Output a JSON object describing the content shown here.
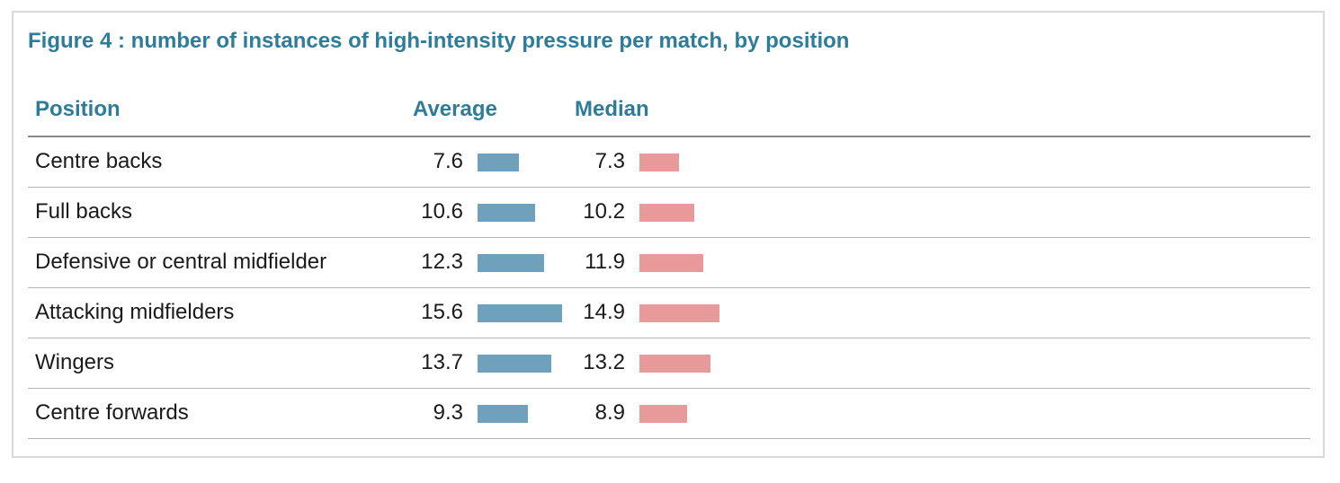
{
  "title": "Figure 4 : number of instances of high-intensity pressure per match, by position",
  "columns": {
    "position": "Position",
    "average": "Average",
    "median": "Median"
  },
  "colors": {
    "title": "#2f7c99",
    "average_bar": "#6fa1bd",
    "median_bar": "#e89a9a"
  },
  "chart_data": {
    "type": "table",
    "title": "Figure 4 : number of instances of high-intensity pressure per match, by position",
    "columns": [
      "Position",
      "Average",
      "Median"
    ],
    "rows": [
      {
        "position": "Centre backs",
        "average": "7.6",
        "median": "7.3"
      },
      {
        "position": "Full backs",
        "average": "10.6",
        "median": "10.2"
      },
      {
        "position": "Defensive or central midfielder",
        "average": "12.3",
        "median": "11.9"
      },
      {
        "position": "Attacking midfielders",
        "average": "15.6",
        "median": "14.9"
      },
      {
        "position": "Wingers",
        "average": "13.7",
        "median": "13.2"
      },
      {
        "position": "Centre forwards",
        "average": "9.3",
        "median": "8.9"
      }
    ],
    "series": [
      {
        "name": "Average",
        "values": [
          7.6,
          10.6,
          12.3,
          15.6,
          13.7,
          9.3
        ]
      },
      {
        "name": "Median",
        "values": [
          7.3,
          10.2,
          11.9,
          14.9,
          13.2,
          8.9
        ]
      }
    ]
  }
}
